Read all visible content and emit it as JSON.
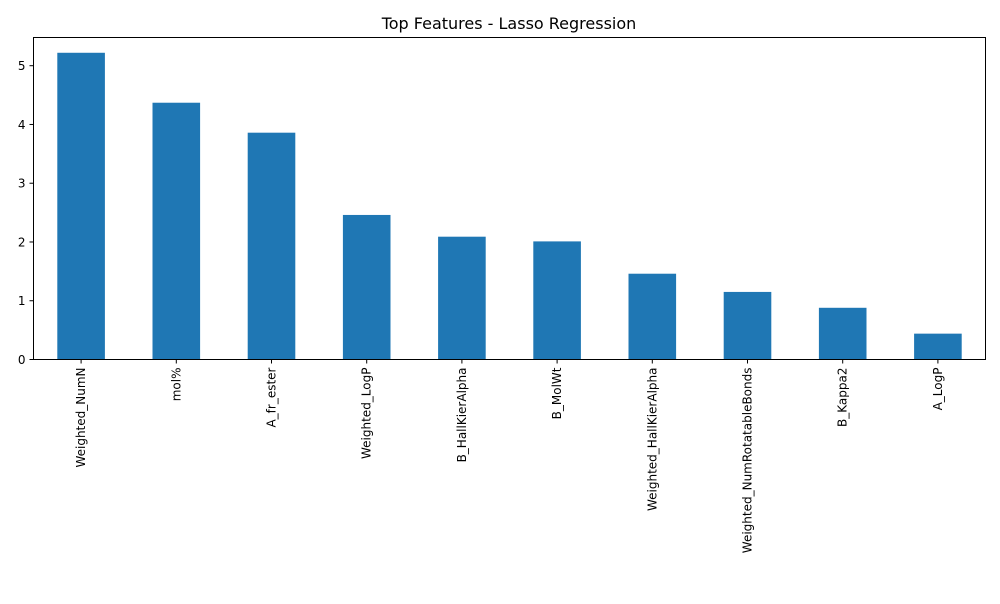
{
  "chart_data": {
    "type": "bar",
    "title": "Top Features - Lasso Regression",
    "xlabel": "",
    "ylabel": "",
    "categories": [
      "Weighted_NumN",
      "mol%",
      "A_fr_ester",
      "Weighted_LogP",
      "B_HallKierAlpha",
      "B_MolWt",
      "Weighted_HallKierAlpha",
      "Weighted_NumRotatableBonds",
      "B_Kappa2",
      "A_LogP"
    ],
    "values": [
      5.22,
      4.37,
      3.86,
      2.46,
      2.09,
      2.01,
      1.46,
      1.15,
      0.88,
      0.44
    ],
    "ylim": [
      0,
      5.48
    ],
    "yticks": [
      0,
      1,
      2,
      3,
      4,
      5
    ],
    "grid": false,
    "legend": "none",
    "bar_color": "#1f77b4"
  }
}
